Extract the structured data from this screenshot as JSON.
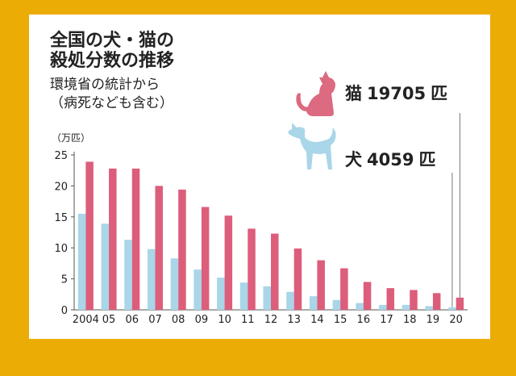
{
  "title_line1": "全国の犬・猫の",
  "title_line2": "殺処分数の推移",
  "subtitle_line1": "環境省の統計から",
  "subtitle_line2": "（病死なども含む）",
  "unit_label": "（万匹）",
  "callouts": {
    "cat": {
      "species": "猫",
      "value": "19705",
      "unit": "匹"
    },
    "dog": {
      "species": "犬",
      "value": "4059",
      "unit": "匹"
    }
  },
  "icons": {
    "cat": "cat-silhouette-icon",
    "dog": "dog-silhouette-icon"
  },
  "colors": {
    "background": "#ecac06",
    "dog": "#a9d6e8",
    "cat": "#dc5e7b",
    "axis": "#555555",
    "icon_cat": "#dc6a80",
    "icon_dog": "#a9d6e8"
  },
  "chart_data": {
    "type": "bar",
    "categories": [
      "2004",
      "05",
      "06",
      "07",
      "08",
      "09",
      "10",
      "11",
      "12",
      "13",
      "14",
      "15",
      "16",
      "17",
      "18",
      "19",
      "20"
    ],
    "series": [
      {
        "name": "犬",
        "values": [
          15.5,
          13.9,
          11.3,
          9.8,
          8.3,
          6.5,
          5.2,
          4.4,
          3.8,
          2.9,
          2.2,
          1.6,
          1.1,
          0.8,
          0.8,
          0.6,
          0.4059
        ]
      },
      {
        "name": "猫",
        "values": [
          23.9,
          22.8,
          22.8,
          20.0,
          19.4,
          16.6,
          15.2,
          13.1,
          12.3,
          9.9,
          8.0,
          6.7,
          4.5,
          3.5,
          3.2,
          2.7,
          1.9705
        ]
      }
    ],
    "yticks": [
      0,
      5,
      10,
      15,
      20,
      25
    ],
    "ylim": [
      0,
      25
    ],
    "ylabel": "（万匹）",
    "grid": false,
    "legend": "none"
  }
}
